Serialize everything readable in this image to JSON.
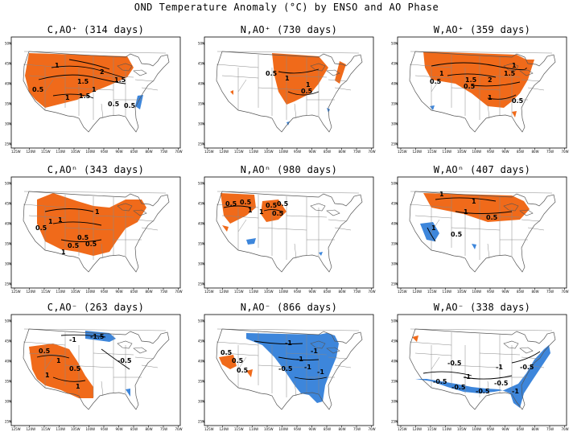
{
  "title": "OND Temperature Anomaly (°C) by ENSO and AO Phase",
  "colors": {
    "warm": "#f06a1a",
    "cold": "#3d86db",
    "state_lines": "#888888",
    "contour": "#000000"
  },
  "lat_ticks": [
    "50N",
    "45N",
    "40N",
    "35N",
    "30N",
    "25N"
  ],
  "lon_ticks": [
    "125W",
    "120W",
    "115W",
    "110W",
    "105W",
    "100W",
    "95W",
    "90W",
    "85W",
    "80W",
    "75W",
    "70W"
  ],
  "panels": [
    {
      "id": "C_AOpos",
      "title": "C,AO⁺ (314 days)",
      "labels": [
        "1",
        "1.5",
        "2",
        "1.5",
        "1",
        "0.5",
        "0.5",
        "1",
        "0.5",
        "1.5"
      ]
    },
    {
      "id": "N_AOpos",
      "title": "N,AO⁺ (730 days)",
      "labels": [
        "0.5",
        "1",
        "1",
        "0.5"
      ]
    },
    {
      "id": "W_AOpos",
      "title": "W,AO⁺ (359 days)",
      "labels": [
        "0.5",
        "1",
        "1.5",
        "2",
        "1.5",
        "1",
        "0.5",
        "1",
        "0.5"
      ]
    },
    {
      "id": "C_AOneu",
      "title": "C,AOⁿ (343 days)",
      "labels": [
        "0.5",
        "1",
        "1",
        "0.5",
        "1",
        "0.5",
        "0.5",
        "1"
      ]
    },
    {
      "id": "N_AOneu",
      "title": "N,AOⁿ (980 days)",
      "labels": [
        "0.5",
        "0.5",
        "1",
        "0.5",
        "0.5",
        "0.5",
        "1"
      ]
    },
    {
      "id": "W_AOneu",
      "title": "W,AOⁿ (407 days)",
      "labels": [
        "1",
        "1",
        "0.5",
        "1",
        "1",
        "0.5"
      ]
    },
    {
      "id": "C_AOneg",
      "title": "C,AO⁻ (263 days)",
      "labels": [
        "-1.5",
        "-1",
        "0.5",
        "1",
        "1",
        "0.5",
        "1",
        "-0.5"
      ]
    },
    {
      "id": "N_AOneg",
      "title": "N,AO⁻ (866 days)",
      "labels": [
        "0.5",
        "-1",
        "-1",
        "-1",
        "-0.5",
        "-1",
        "-1",
        "0.5",
        "0.5"
      ]
    },
    {
      "id": "W_AOneg",
      "title": "W,AO⁻ (338 days)",
      "labels": [
        "-0.5",
        "-0.5",
        "-0.5",
        "-1",
        "-0.5",
        "-1",
        "-0.5",
        "-1",
        "-0.5"
      ]
    }
  ]
}
